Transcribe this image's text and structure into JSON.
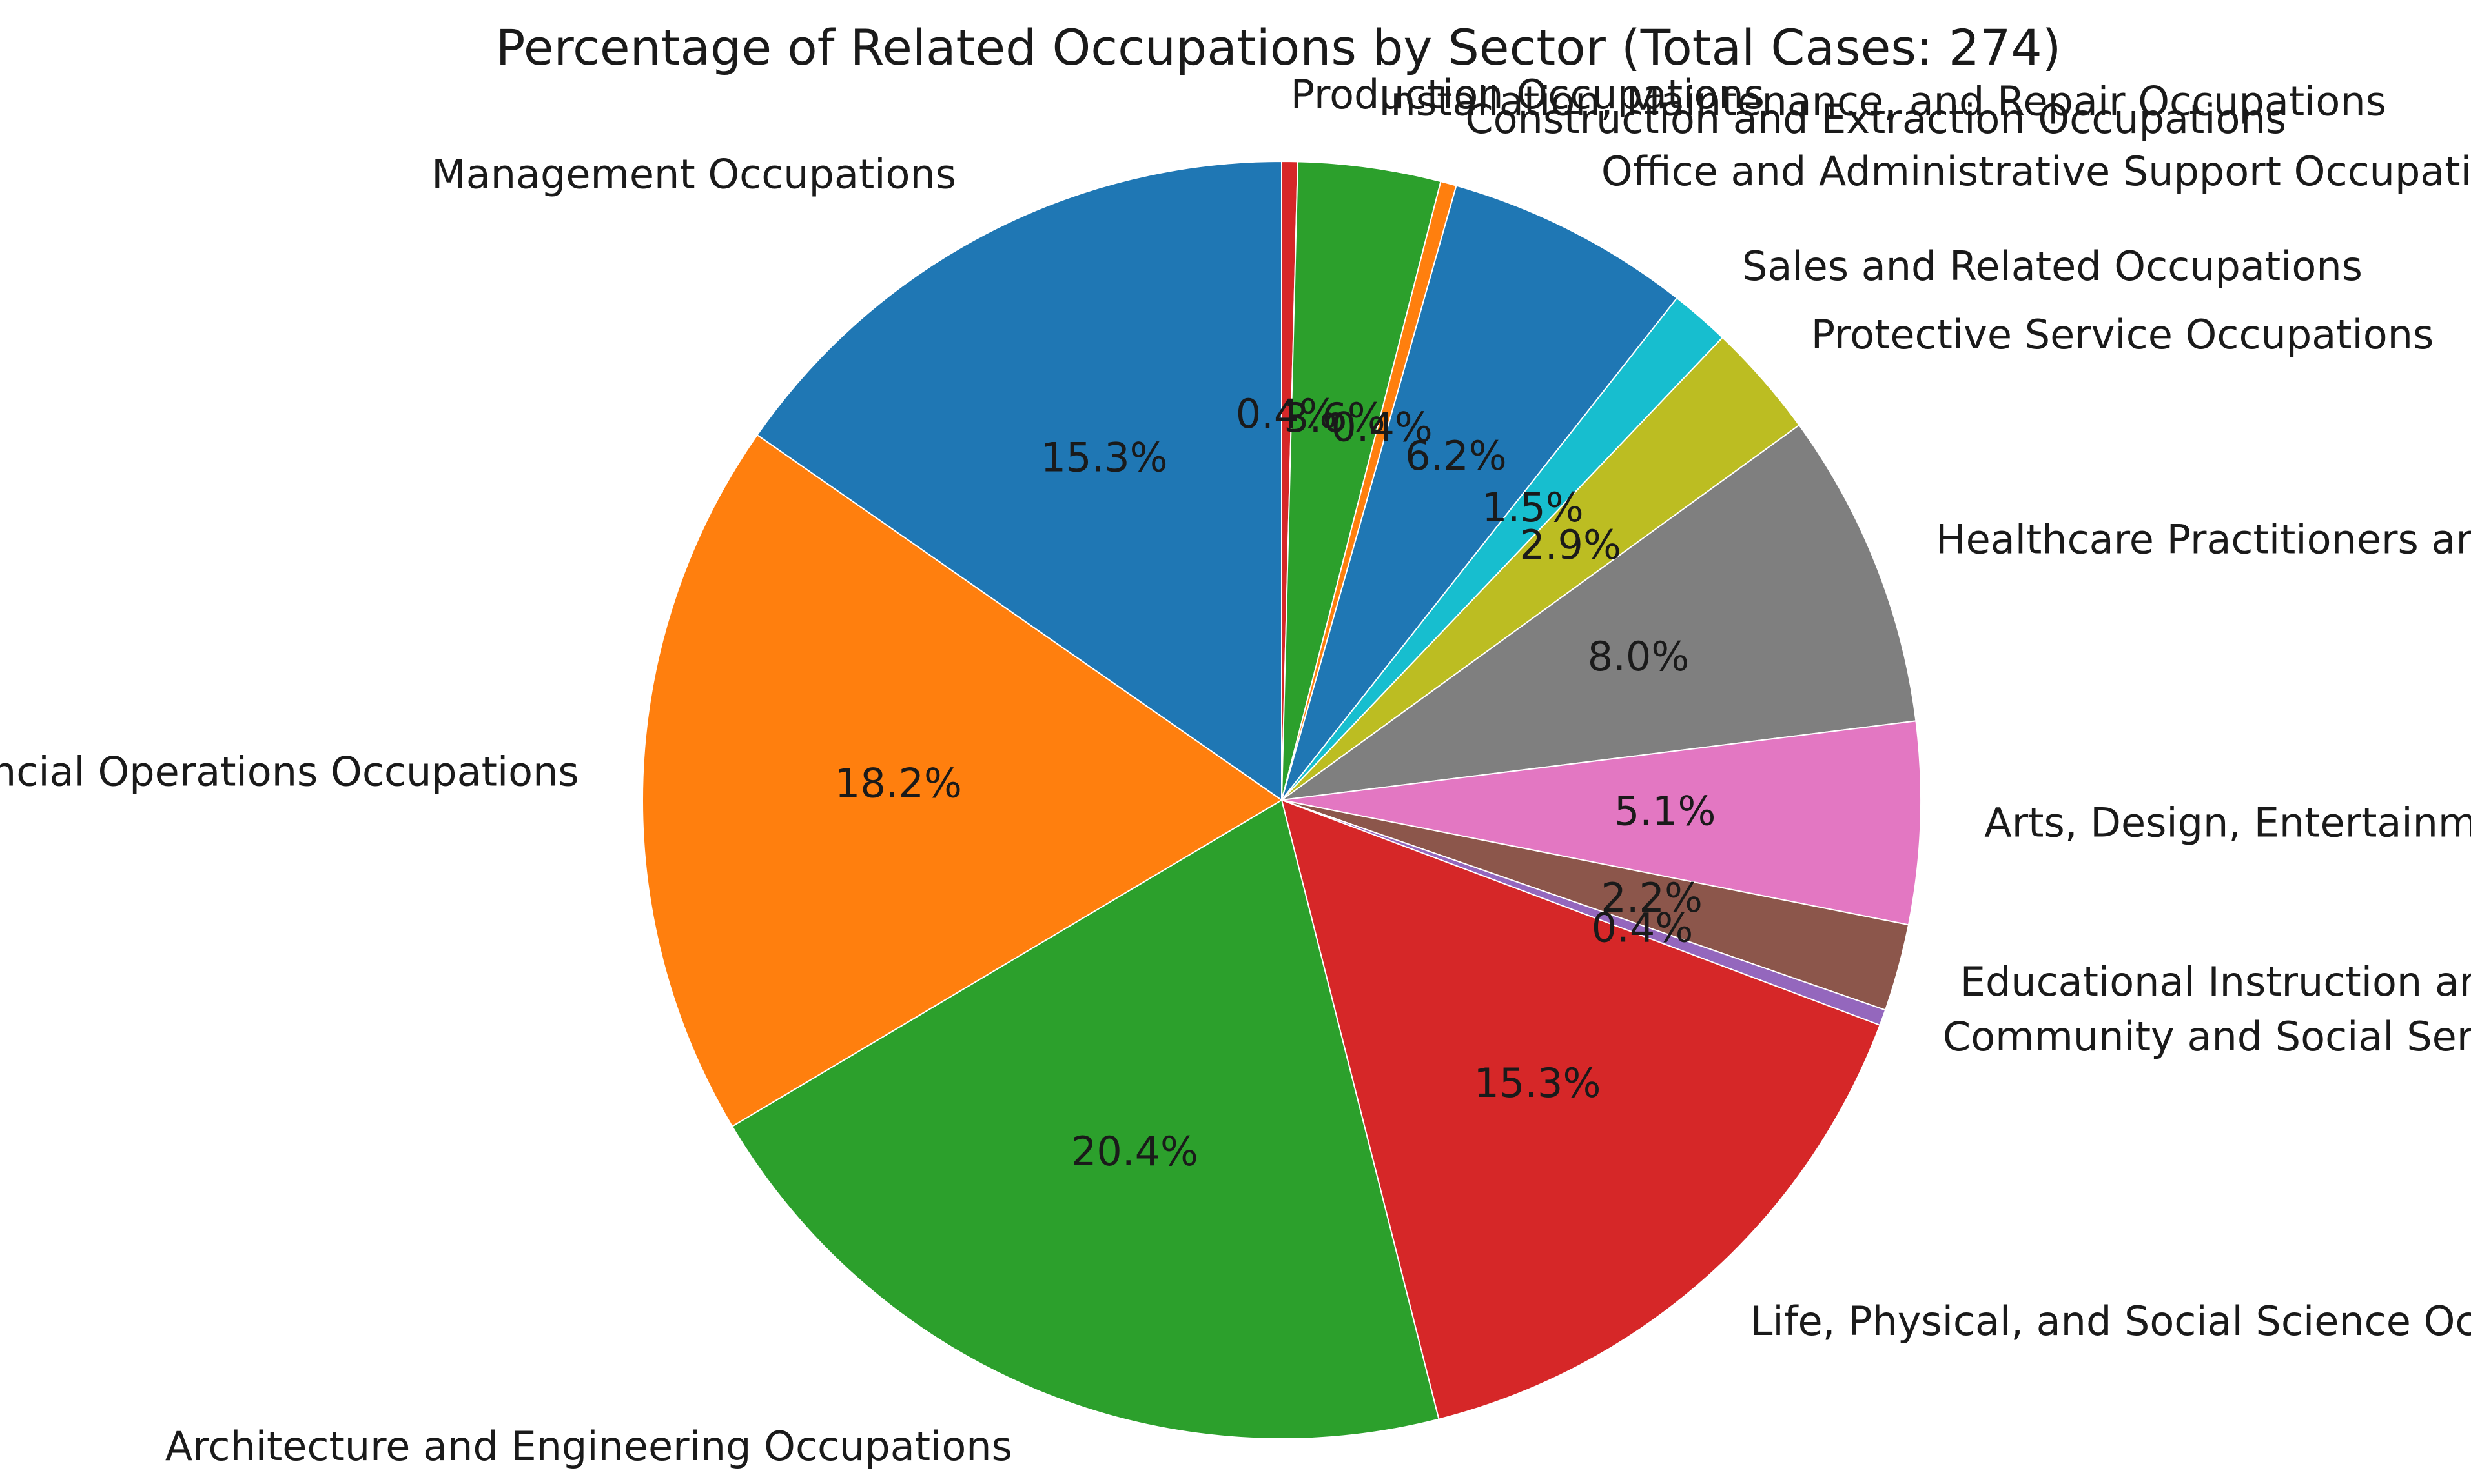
{
  "chart_data": {
    "type": "pie",
    "title": "Percentage of Related Occupations by Sector (Total Cases: 274)",
    "total_cases": 274,
    "start_angle_deg": 90,
    "direction": "clockwise",
    "slices": [
      {
        "label": "Production Occupations",
        "percent": 0.4,
        "pct_label": "0.4%",
        "color": "#d62728"
      },
      {
        "label": "Installation, Maintenance, and Repair Occupations",
        "percent": 3.6,
        "pct_label": "3.6%",
        "color": "#2ca02c"
      },
      {
        "label": "Construction and Extraction Occupations",
        "percent": 0.4,
        "pct_label": "0.4%",
        "color": "#ff7f0e"
      },
      {
        "label": "Office and Administrative Support Occupations",
        "percent": 6.2,
        "pct_label": "6.2%",
        "color": "#1f77b4"
      },
      {
        "label": "Sales and Related Occupations",
        "percent": 1.5,
        "pct_label": "1.5%",
        "color": "#17becf"
      },
      {
        "label": "Protective Service Occupations",
        "percent": 2.9,
        "pct_label": "2.9%",
        "color": "#bcbd22"
      },
      {
        "label": "Healthcare Practitioners and Technical Occupations",
        "percent": 8.0,
        "pct_label": "8.0%",
        "color": "#7f7f7f"
      },
      {
        "label": "Arts, Design, Entertainment, Sports, and Media Occupations",
        "percent": 5.1,
        "pct_label": "5.1%",
        "color": "#e377c2"
      },
      {
        "label": "Educational Instruction and Library Occupations",
        "percent": 2.2,
        "pct_label": "2.2%",
        "color": "#8c564b"
      },
      {
        "label": "Community and Social Service Occupations",
        "percent": 0.4,
        "pct_label": "0.4%",
        "color": "#9467bd"
      },
      {
        "label": "Life, Physical, and Social Science Occupations",
        "percent": 15.3,
        "pct_label": "15.3%",
        "color": "#d62728"
      },
      {
        "label": "Architecture and Engineering Occupations",
        "percent": 20.4,
        "pct_label": "20.4%",
        "color": "#2ca02c"
      },
      {
        "label": "Business and Financial Operations Occupations",
        "percent": 18.2,
        "pct_label": "18.2%",
        "color": "#ff7f0e"
      },
      {
        "label": "Management Occupations",
        "percent": 15.3,
        "pct_label": "15.3%",
        "color": "#1f77b4"
      }
    ]
  }
}
